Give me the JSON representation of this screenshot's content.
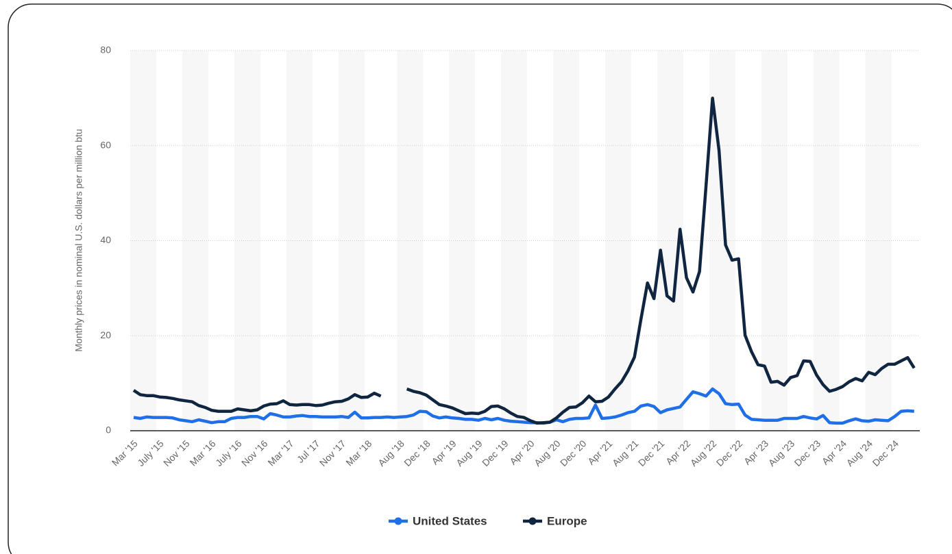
{
  "chart_data": {
    "type": "line",
    "y_label": "Monthly prices in nominal U.S. dollars per million btu",
    "categories": [
      "Mar '15",
      null,
      null,
      null,
      "July '15",
      null,
      null,
      null,
      "Nov '15",
      null,
      null,
      null,
      "Mar '16",
      null,
      null,
      null,
      "July '16",
      null,
      null,
      null,
      "Nov '16",
      null,
      null,
      null,
      "Mar '17",
      null,
      null,
      null,
      "Jul '17",
      null,
      null,
      null,
      "Nov '17",
      null,
      null,
      null,
      "Mar '18",
      null,
      null,
      null,
      null,
      "Aug '18",
      null,
      null,
      null,
      "Dec '18",
      null,
      null,
      null,
      "Apr '19",
      null,
      null,
      null,
      "Aug '19",
      null,
      null,
      null,
      "Dec '19",
      null,
      null,
      null,
      "Apr '20",
      null,
      null,
      null,
      "Aug '20",
      null,
      null,
      null,
      "Dec '20",
      null,
      null,
      null,
      "Apr '21",
      null,
      null,
      null,
      "Aug '21",
      null,
      null,
      null,
      "Dec '21",
      null,
      null,
      null,
      "Apr '22",
      null,
      null,
      null,
      "Aug '22",
      null,
      null,
      null,
      "Dec '22",
      null,
      null,
      null,
      "Apr '23",
      null,
      null,
      null,
      "Aug '23",
      null,
      null,
      null,
      "Dec '23",
      null,
      null,
      null,
      "Apr '24",
      null,
      null,
      null,
      "Aug '24",
      null,
      null,
      null,
      "Dec '24",
      null,
      null,
      null
    ],
    "series": [
      {
        "name": "United States",
        "color": "#1f6fe8",
        "values": [
          2.8,
          2.6,
          2.9,
          2.8,
          2.8,
          2.8,
          2.7,
          2.3,
          2.1,
          1.9,
          2.3,
          2.0,
          1.7,
          1.9,
          1.9,
          2.6,
          2.8,
          2.8,
          3.0,
          3.0,
          2.5,
          3.6,
          3.3,
          2.9,
          2.9,
          3.1,
          3.2,
          3.0,
          3.0,
          2.9,
          2.9,
          2.9,
          3.0,
          2.8,
          3.9,
          2.7,
          2.7,
          2.8,
          2.8,
          2.9,
          2.8,
          2.9,
          3.0,
          3.3,
          4.1,
          4.0,
          3.1,
          2.7,
          2.9,
          2.7,
          2.6,
          2.4,
          2.4,
          2.2,
          2.6,
          2.3,
          2.6,
          2.2,
          2.0,
          1.9,
          1.8,
          1.7,
          1.7,
          1.6,
          1.8,
          2.3,
          1.9,
          2.4,
          2.6,
          2.6,
          2.7,
          5.4,
          2.6,
          2.7,
          2.9,
          3.3,
          3.8,
          4.1,
          5.2,
          5.5,
          5.1,
          3.8,
          4.4,
          4.7,
          5.0,
          6.6,
          8.2,
          7.8,
          7.3,
          8.8,
          7.8,
          5.7,
          5.5,
          5.6,
          3.3,
          2.4,
          2.3,
          2.2,
          2.2,
          2.2,
          2.6,
          2.6,
          2.6,
          3.0,
          2.7,
          2.5,
          3.2,
          1.7,
          1.6,
          1.6,
          2.1,
          2.5,
          2.1,
          2.0,
          2.3,
          2.2,
          2.1,
          3.0,
          4.1,
          4.2,
          4.1
        ]
      },
      {
        "name": "Europe",
        "color": "#0f2540",
        "values": [
          8.5,
          7.6,
          7.4,
          7.4,
          7.1,
          7.0,
          6.8,
          6.5,
          6.3,
          6.1,
          5.3,
          4.9,
          4.3,
          4.1,
          4.1,
          4.1,
          4.6,
          4.4,
          4.2,
          4.4,
          5.2,
          5.6,
          5.7,
          6.3,
          5.5,
          5.4,
          5.5,
          5.5,
          5.3,
          5.4,
          5.8,
          6.1,
          6.2,
          6.7,
          7.6,
          7.0,
          7.1,
          7.9,
          7.3,
          null,
          null,
          null,
          8.8,
          8.3,
          8.0,
          7.5,
          6.5,
          5.5,
          5.2,
          4.8,
          4.2,
          3.6,
          3.7,
          3.6,
          4.1,
          5.1,
          5.2,
          4.6,
          3.7,
          3.0,
          2.8,
          2.1,
          1.6,
          1.7,
          1.8,
          2.7,
          3.9,
          4.9,
          5.0,
          5.9,
          7.3,
          6.1,
          6.2,
          7.1,
          8.8,
          10.3,
          12.6,
          15.5,
          23.5,
          31.1,
          27.8,
          38.0,
          28.4,
          27.3,
          42.4,
          32.2,
          29.2,
          33.5,
          51.5,
          70.0,
          59.0,
          39.1,
          35.9,
          36.2,
          20.1,
          16.6,
          13.9,
          13.6,
          10.2,
          10.4,
          9.6,
          11.2,
          11.6,
          14.7,
          14.6,
          11.7,
          9.7,
          8.3,
          8.7,
          9.3,
          10.3,
          11.0,
          10.5,
          12.3,
          11.8,
          13.1,
          14.0,
          14.0,
          14.7,
          15.4,
          13.2
        ]
      }
    ],
    "ylim": [
      0,
      80
    ],
    "yticks": [
      0,
      20,
      40,
      60,
      80
    ],
    "grid": true,
    "legend": "bottom"
  }
}
